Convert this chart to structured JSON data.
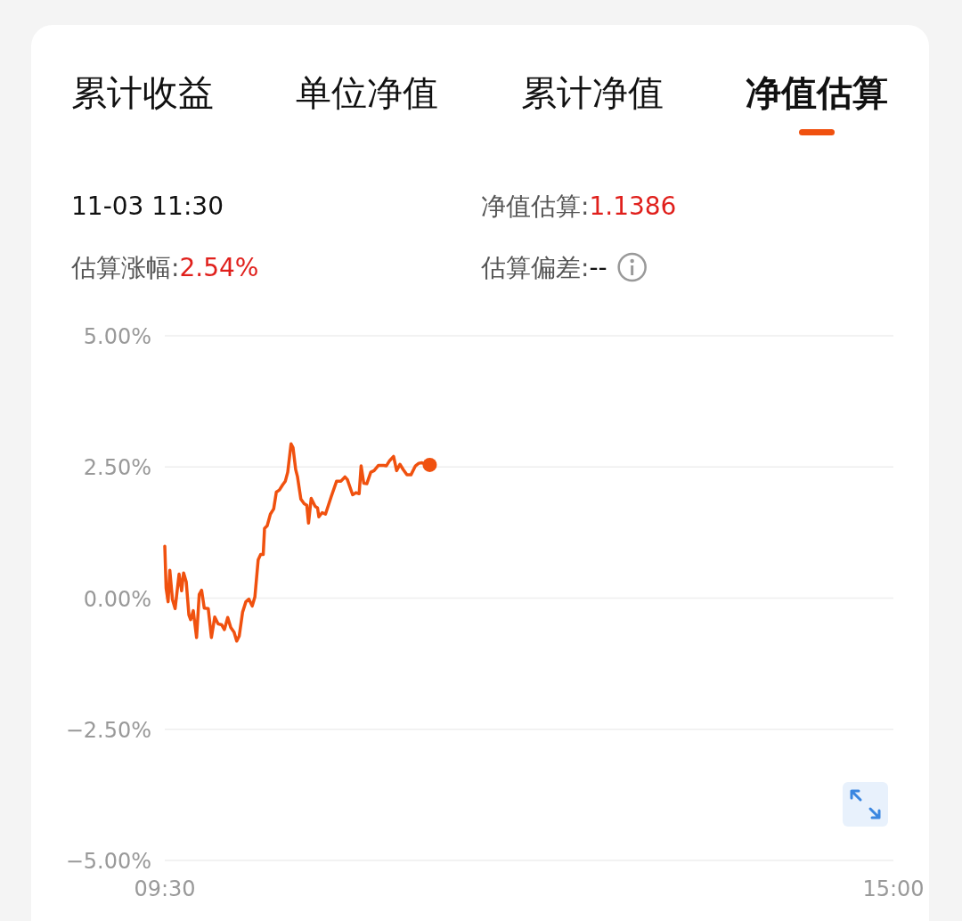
{
  "chart_data": {
    "type": "line",
    "annotations": [
      "累计收益",
      "单位净值",
      "累计净值",
      "净值估算",
      "11-03 11:30",
      "净值估算:1.1386",
      "估算涨幅:2.54%",
      "估算偏差:--"
    ],
    "xlim": [
      9.5,
      15
    ],
    "xticks": [
      {
        "value": 9.5,
        "label": "09:30"
      },
      {
        "value": 15,
        "label": "15:00"
      }
    ],
    "ylim": [
      -5,
      5
    ],
    "yticks": [
      {
        "value": 5,
        "label": "5.00%"
      },
      {
        "value": 2.5,
        "label": "2.50%"
      },
      {
        "value": 0,
        "label": "0.00%"
      },
      {
        "value": -2.5,
        "label": "−2.50%"
      },
      {
        "value": -5,
        "label": "−5.00%"
      }
    ],
    "grid": "y",
    "series": [
      {
        "color": "#f0510f",
        "marker": "none",
        "x": [
          9.5,
          9.51,
          9.525,
          9.538,
          9.558,
          9.578,
          9.608,
          9.627,
          9.642,
          9.662,
          9.682,
          9.695,
          9.715,
          9.74,
          9.76,
          9.778,
          9.798,
          9.828,
          9.852,
          9.877,
          9.902,
          9.93,
          9.95,
          9.975,
          9.998,
          10.023,
          10.043,
          10.062,
          10.087,
          10.112,
          10.135,
          10.16,
          10.18,
          10.205,
          10.223,
          10.243,
          10.253,
          10.273,
          10.297,
          10.322,
          10.342,
          10.365,
          10.39,
          10.41,
          10.428,
          10.453,
          10.468,
          10.488,
          10.502,
          10.527,
          10.552,
          10.572,
          10.585,
          10.605,
          10.635,
          10.653,
          10.663,
          10.688,
          10.713,
          10.757,
          10.797,
          10.83,
          10.86,
          10.878,
          10.918,
          10.943,
          10.967,
          10.982,
          11.002,
          11.025,
          11.055,
          11.08,
          11.113,
          11.153,
          11.172,
          11.197,
          11.227,
          11.25,
          11.275,
          11.3,
          11.328,
          11.358,
          11.392,
          11.417,
          11.442,
          11.475,
          11.5
        ],
        "values": [
          0.99,
          0.19,
          -0.07,
          0.53,
          -0.03,
          -0.2,
          0.46,
          0.14,
          0.48,
          0.31,
          -0.32,
          -0.41,
          -0.24,
          -0.75,
          0.07,
          0.15,
          -0.19,
          -0.2,
          -0.75,
          -0.36,
          -0.49,
          -0.51,
          -0.6,
          -0.37,
          -0.56,
          -0.65,
          -0.82,
          -0.72,
          -0.27,
          -0.07,
          -0.02,
          -0.15,
          0.02,
          0.73,
          0.83,
          0.83,
          1.33,
          1.38,
          1.6,
          1.7,
          2.02,
          2.06,
          2.16,
          2.23,
          2.4,
          2.94,
          2.87,
          2.45,
          2.31,
          1.89,
          1.8,
          1.77,
          1.43,
          1.9,
          1.75,
          1.72,
          1.55,
          1.63,
          1.6,
          1.94,
          2.23,
          2.23,
          2.31,
          2.26,
          1.97,
          2.01,
          1.99,
          2.52,
          2.19,
          2.18,
          2.4,
          2.43,
          2.53,
          2.53,
          2.52,
          2.62,
          2.7,
          2.43,
          2.55,
          2.45,
          2.35,
          2.35,
          2.52,
          2.57,
          2.58,
          2.55,
          2.54
        ]
      },
      {
        "type": "scatter",
        "color": "#f0510f",
        "marker": "circle",
        "x": [
          11.5
        ],
        "values": [
          2.54
        ]
      }
    ]
  }
}
